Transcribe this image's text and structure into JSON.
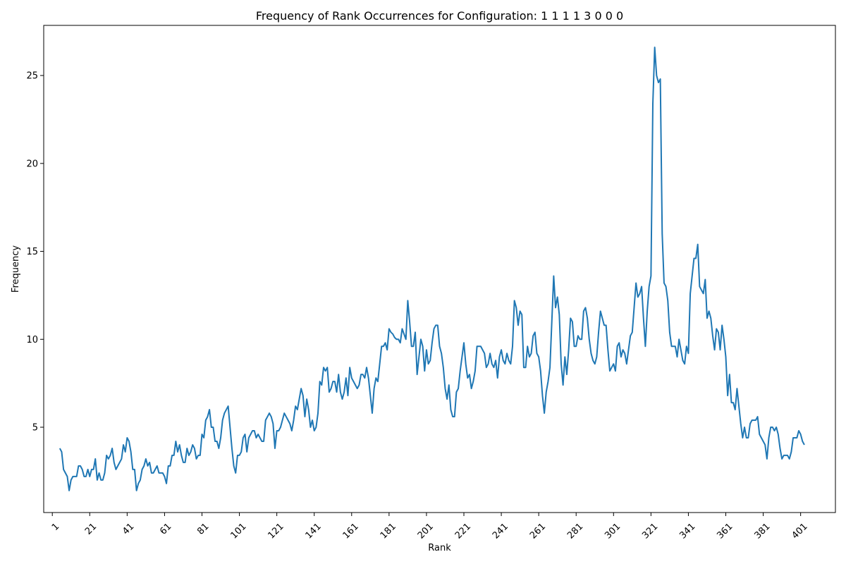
{
  "chart_data": {
    "type": "line",
    "title": "Frequency of Rank Occurrences for Configuration: 1 1 1 1 3 0 0 0",
    "xlabel": "Rank",
    "ylabel": "Frequency",
    "xlim": [
      -3.6,
      419.6
    ],
    "ylim": [
      0.15,
      27.85
    ],
    "xticks": [
      1,
      21,
      41,
      61,
      81,
      101,
      121,
      141,
      161,
      181,
      201,
      221,
      241,
      261,
      281,
      301,
      321,
      341,
      361,
      381,
      401
    ],
    "xtick_labels": [
      "1",
      "21",
      "41",
      "61",
      "81",
      "101",
      "121",
      "141",
      "161",
      "181",
      "201",
      "221",
      "241",
      "261",
      "281",
      "301",
      "321",
      "341",
      "361",
      "381",
      "401"
    ],
    "yticks": [
      5,
      10,
      15,
      20,
      25
    ],
    "ytick_labels": [
      "5",
      "10",
      "15",
      "20",
      "25"
    ],
    "grid": false,
    "legend": "none",
    "line_color": "#1f77b4",
    "series": [
      {
        "x_start": 5,
        "x_step": 1,
        "values": [
          3.8,
          3.6,
          2.6,
          2.4,
          2.2,
          1.4,
          2.0,
          2.2,
          2.2,
          2.2,
          2.8,
          2.8,
          2.6,
          2.2,
          2.2,
          2.6,
          2.2,
          2.6,
          2.6,
          3.2,
          2.0,
          2.4,
          2.0,
          2.0,
          2.4,
          3.4,
          3.2,
          3.4,
          3.8,
          3.0,
          2.6,
          2.8,
          3.0,
          3.2,
          4.0,
          3.6,
          4.4,
          4.2,
          3.6,
          2.6,
          2.6,
          1.4,
          1.8,
          2.0,
          2.6,
          2.8,
          3.2,
          2.8,
          3.0,
          2.4,
          2.4,
          2.6,
          2.8,
          2.4,
          2.4,
          2.4,
          2.2,
          1.8,
          2.8,
          2.8,
          3.4,
          3.4,
          4.2,
          3.6,
          4.0,
          3.4,
          3.0,
          3.0,
          3.8,
          3.4,
          3.6,
          4.0,
          3.8,
          3.2,
          3.4,
          3.4,
          4.6,
          4.4,
          5.4,
          5.6,
          6.0,
          5.0,
          5.0,
          4.2,
          4.2,
          3.8,
          4.4,
          5.4,
          5.8,
          6.0,
          6.2,
          5.0,
          3.8,
          2.8,
          2.4,
          3.4,
          3.4,
          3.6,
          4.4,
          4.6,
          3.6,
          4.4,
          4.6,
          4.8,
          4.8,
          4.4,
          4.6,
          4.4,
          4.2,
          4.2,
          5.4,
          5.6,
          5.8,
          5.6,
          5.2,
          3.8,
          4.8,
          4.8,
          5.0,
          5.4,
          5.8,
          5.6,
          5.4,
          5.2,
          4.8,
          5.4,
          6.2,
          6.0,
          6.6,
          7.2,
          6.8,
          5.6,
          6.6,
          6.0,
          5.0,
          5.4,
          4.8,
          5.0,
          5.8,
          7.6,
          7.4,
          8.4,
          8.2,
          8.4,
          7.0,
          7.2,
          7.6,
          7.6,
          7.0,
          8.0,
          7.0,
          6.6,
          7.0,
          7.8,
          6.8,
          8.4,
          7.8,
          7.6,
          7.4,
          7.2,
          7.4,
          8.0,
          8.0,
          7.8,
          8.4,
          7.8,
          6.8,
          5.8,
          7.2,
          7.8,
          7.6,
          8.6,
          9.6,
          9.6,
          9.8,
          9.4,
          10.6,
          10.4,
          10.3,
          10.1,
          10.0,
          10.0,
          9.8,
          10.6,
          10.3,
          10.0,
          12.2,
          11.0,
          9.6,
          9.6,
          10.4,
          8.0,
          9.0,
          10.0,
          9.6,
          8.2,
          9.4,
          8.6,
          8.8,
          9.8,
          10.6,
          10.8,
          10.8,
          9.6,
          9.2,
          8.4,
          7.2,
          6.6,
          7.4,
          6.0,
          5.6,
          5.6,
          7.0,
          7.2,
          8.2,
          9.0,
          9.8,
          8.6,
          7.8,
          8.0,
          7.2,
          7.6,
          8.2,
          9.6,
          9.6,
          9.6,
          9.4,
          9.2,
          8.4,
          8.6,
          9.2,
          8.6,
          8.4,
          8.8,
          7.8,
          9.0,
          9.4,
          8.8,
          8.6,
          9.2,
          8.8,
          8.6,
          9.6,
          12.2,
          11.8,
          10.8,
          11.6,
          11.4,
          8.4,
          8.4,
          9.6,
          9.0,
          9.2,
          10.2,
          10.4,
          9.2,
          9.0,
          8.2,
          6.8,
          5.8,
          7.0,
          7.6,
          8.4,
          11.0,
          13.6,
          11.8,
          12.4,
          11.4,
          8.6,
          7.4,
          9.0,
          8.0,
          9.4,
          11.2,
          11.0,
          9.6,
          9.6,
          10.2,
          10.0,
          10.0,
          11.6,
          11.8,
          11.2,
          10.0,
          9.2,
          8.8,
          8.6,
          9.0,
          10.4,
          11.6,
          11.2,
          10.8,
          10.8,
          9.4,
          8.2,
          8.4,
          8.6,
          8.2,
          9.6,
          9.8,
          9.0,
          9.4,
          9.2,
          8.6,
          9.4,
          10.2,
          10.4,
          11.8,
          13.2,
          12.4,
          12.6,
          13.0,
          11.2,
          9.6,
          11.6,
          13.0,
          13.6,
          23.4,
          26.6,
          25.0,
          24.6,
          24.8,
          16.0,
          13.2,
          13.0,
          12.2,
          10.4,
          9.6,
          9.6,
          9.6,
          9.0,
          10.0,
          9.4,
          8.8,
          8.6,
          9.6,
          9.2,
          12.6,
          13.6,
          14.6,
          14.6,
          15.4,
          13.0,
          12.8,
          12.6,
          13.4,
          11.2,
          11.6,
          11.2,
          10.2,
          9.4,
          10.6,
          10.4,
          9.4,
          10.8,
          10.0,
          9.0,
          6.8,
          8.0,
          6.4,
          6.4,
          6.0,
          7.2,
          6.2,
          5.2,
          4.4,
          5.0,
          4.4,
          4.4,
          5.2,
          5.4,
          5.4,
          5.4,
          5.6,
          4.6,
          4.4,
          4.2,
          4.0,
          3.2,
          4.4,
          5.0,
          5.0,
          4.8,
          5.0,
          4.6,
          3.8,
          3.2,
          3.4,
          3.4,
          3.4,
          3.2,
          3.6,
          4.4,
          4.4,
          4.4,
          4.8,
          4.6,
          4.2,
          4.0
        ]
      }
    ]
  }
}
